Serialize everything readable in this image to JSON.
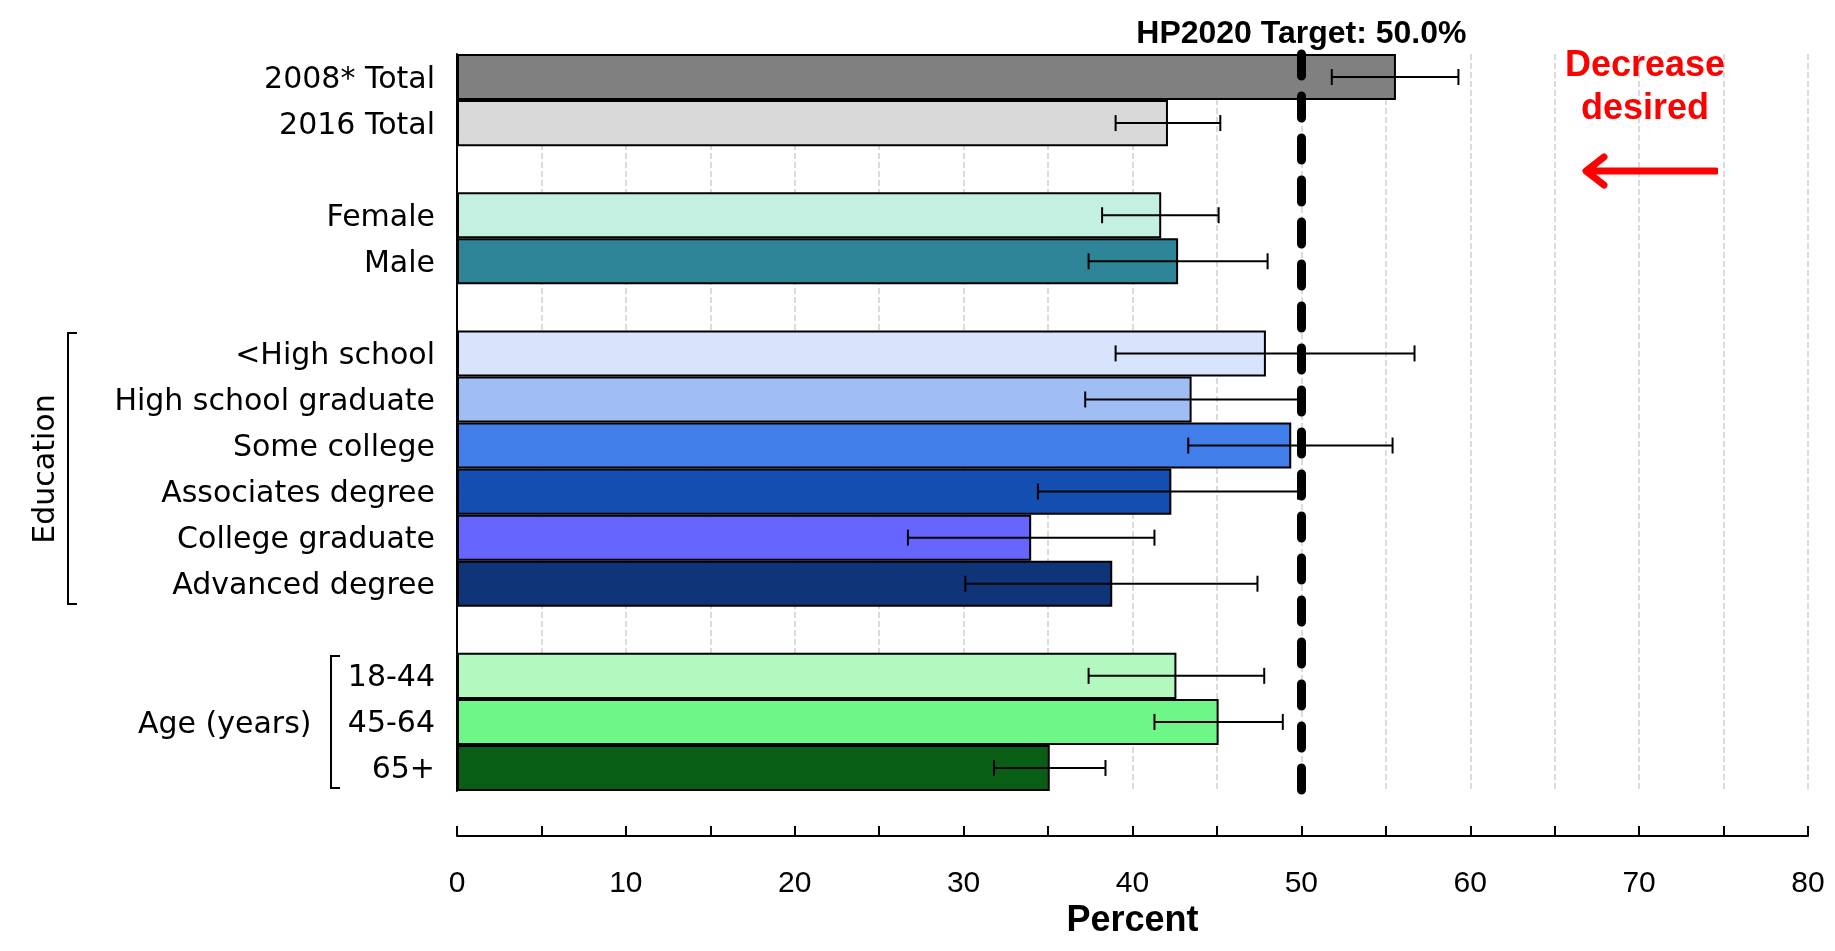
{
  "chart_data": {
    "type": "bar",
    "orientation": "horizontal",
    "xlabel": "Percent",
    "categories": [
      "2008* Total",
      "2016 Total",
      null,
      "Female",
      "Male",
      null,
      "<High school",
      "High school graduate",
      "Some college",
      "Associates degree",
      "College graduate",
      "Advanced degree",
      null,
      "18-44",
      "45-64",
      "65+"
    ],
    "values": [
      55.6,
      42.1,
      null,
      41.7,
      42.7,
      null,
      47.9,
      43.5,
      49.4,
      42.3,
      34.0,
      38.8,
      null,
      42.6,
      45.1,
      35.1
    ],
    "errors": [
      [
        51.8,
        59.3
      ],
      [
        39.0,
        45.2
      ],
      null,
      [
        38.2,
        45.1
      ],
      [
        37.4,
        48.0
      ],
      null,
      [
        39.0,
        56.7
      ],
      [
        37.2,
        49.8
      ],
      [
        43.3,
        55.4
      ],
      [
        34.4,
        49.8
      ],
      [
        26.7,
        41.3
      ],
      [
        30.1,
        47.4
      ],
      null,
      [
        37.4,
        47.8
      ],
      [
        41.3,
        48.9
      ],
      [
        31.8,
        38.4
      ]
    ],
    "colors": [
      "#808080",
      "#d9d9d9",
      null,
      "#c4f0e2",
      "#2e8597",
      null,
      "#d8e4fb",
      "#a1bef4",
      "#417ee9",
      "#144eb0",
      "#6666ff",
      "#0f3478",
      null,
      "#b3f9bf",
      "#6ef787",
      "#085e14"
    ],
    "xlim": [
      0,
      80
    ],
    "xticks": [
      0,
      {
        "value": 5,
        "label": null
      },
      10,
      {
        "value": 15,
        "label": null
      },
      20,
      {
        "value": 25,
        "label": null
      },
      30,
      {
        "value": 35,
        "label": null
      },
      40,
      {
        "value": 45,
        "label": null
      },
      50,
      {
        "value": 55,
        "label": null
      },
      60,
      {
        "value": 65,
        "label": null
      },
      70,
      {
        "value": 75,
        "label": null
      },
      80
    ],
    "grid": "x",
    "ref_lines": [
      {
        "axis": "x",
        "value": 50,
        "label": "HP2020 Target: 50.0%",
        "color": "#000000",
        "line_style": "dashed"
      }
    ],
    "annotations": [
      "Education",
      "Age (years)",
      "Decrease desired"
    ]
  }
}
